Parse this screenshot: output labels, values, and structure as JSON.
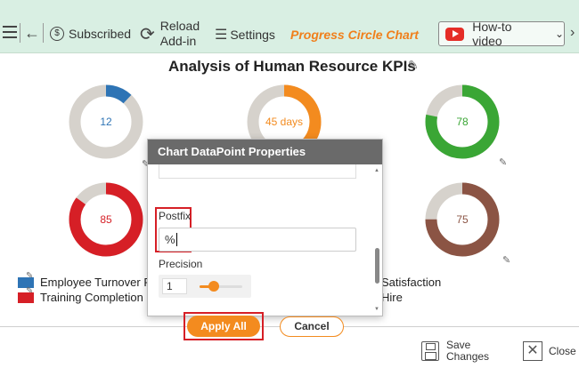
{
  "toolbar": {
    "subscribed_label": "Subscribed",
    "reload_label_line1": "Reload",
    "reload_label_line2": "Add-in",
    "settings_label": "Settings",
    "app_title": "Progress Circle Chart",
    "howto_label": "How-to video",
    "icons": {
      "menu": "hamburger-menu-icon",
      "back": "back-arrow-icon",
      "subscribed": "dollar-circle-icon",
      "reload": "reload-icon",
      "settings": "sliders-icon",
      "youtube": "youtube-icon"
    }
  },
  "chart": {
    "title": "Analysis of Human Resource KPIs"
  },
  "chart_data": {
    "type": "progress-circle",
    "title": "Analysis of Human Resource KPIs",
    "items": [
      {
        "label": "12",
        "value": 12,
        "color": "#2e74b5"
      },
      {
        "label": "45 days",
        "value": 45,
        "color": "#f38b1f"
      },
      {
        "label": "78",
        "value": 78,
        "color": "#3aa635"
      },
      {
        "label": "85",
        "value": 85,
        "color": "#d61f26"
      },
      {
        "label": "75",
        "value": 75,
        "color": "#8b5444"
      }
    ],
    "track_color": "#d6d2cc",
    "legend": [
      {
        "text": "Employee Turnover Ra",
        "color": "#2e74b5"
      },
      {
        "text": "Training Completion Ra",
        "color": "#d61f26"
      },
      {
        "text": "Satisfaction",
        "color": ""
      },
      {
        "text": "Hire",
        "color": ""
      }
    ]
  },
  "dialog": {
    "title": "Chart DataPoint Properties",
    "postfix_label": "Postfix",
    "postfix_value": "%",
    "precision_label": "Precision",
    "precision_value": "1",
    "precision_fill": 0.33,
    "apply_label": "Apply All",
    "cancel_label": "Cancel"
  },
  "bottom": {
    "save_line1": "Save",
    "save_line2": "Changes",
    "close_label": "Close"
  }
}
